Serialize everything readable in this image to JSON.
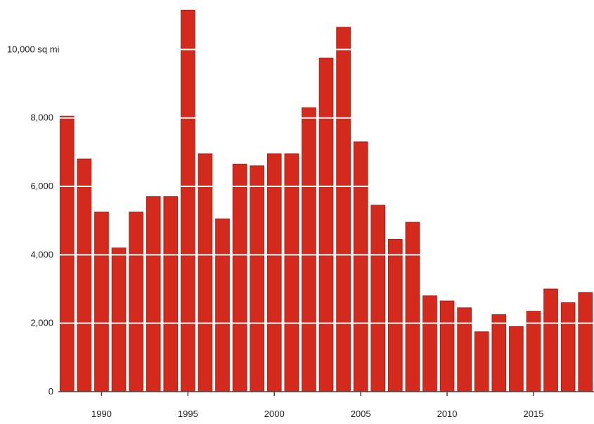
{
  "chart_data": {
    "type": "bar",
    "title": "",
    "xlabel": "",
    "ylabel": "",
    "unit": "sq mi",
    "categories": [
      1988,
      1989,
      1990,
      1991,
      1992,
      1993,
      1994,
      1995,
      1996,
      1997,
      1998,
      1999,
      2000,
      2001,
      2002,
      2003,
      2004,
      2005,
      2006,
      2007,
      2008,
      2009,
      2010,
      2011,
      2012,
      2013,
      2014,
      2015,
      2016,
      2017,
      2018
    ],
    "values": [
      8050,
      6800,
      5250,
      4200,
      5250,
      5700,
      5700,
      11150,
      6950,
      5050,
      6650,
      6600,
      6950,
      6950,
      8300,
      9750,
      10650,
      7300,
      5450,
      4450,
      4950,
      2800,
      2650,
      2450,
      1750,
      2250,
      1900,
      2350,
      3000,
      2600,
      2900
    ],
    "ylim": [
      0,
      11200
    ],
    "yticks": [
      0,
      2000,
      4000,
      6000,
      8000,
      10000
    ],
    "ytick_labels": [
      "0",
      "2,000",
      "4,000",
      "6,000",
      "8,000",
      "10,000 sq mi"
    ],
    "xtick_years": [
      1990,
      1995,
      2000,
      2005,
      2010,
      2015
    ],
    "xtick_labels": [
      "1990",
      "1995",
      "2000",
      "2005",
      "2010",
      "2015"
    ],
    "grid": true,
    "legend": "none",
    "colors": {
      "bar": "#d42a1e",
      "bar_edge": "#b81c12",
      "grid_over_bars": "#ffffff",
      "axis": "#444444",
      "text": "#222222"
    }
  }
}
